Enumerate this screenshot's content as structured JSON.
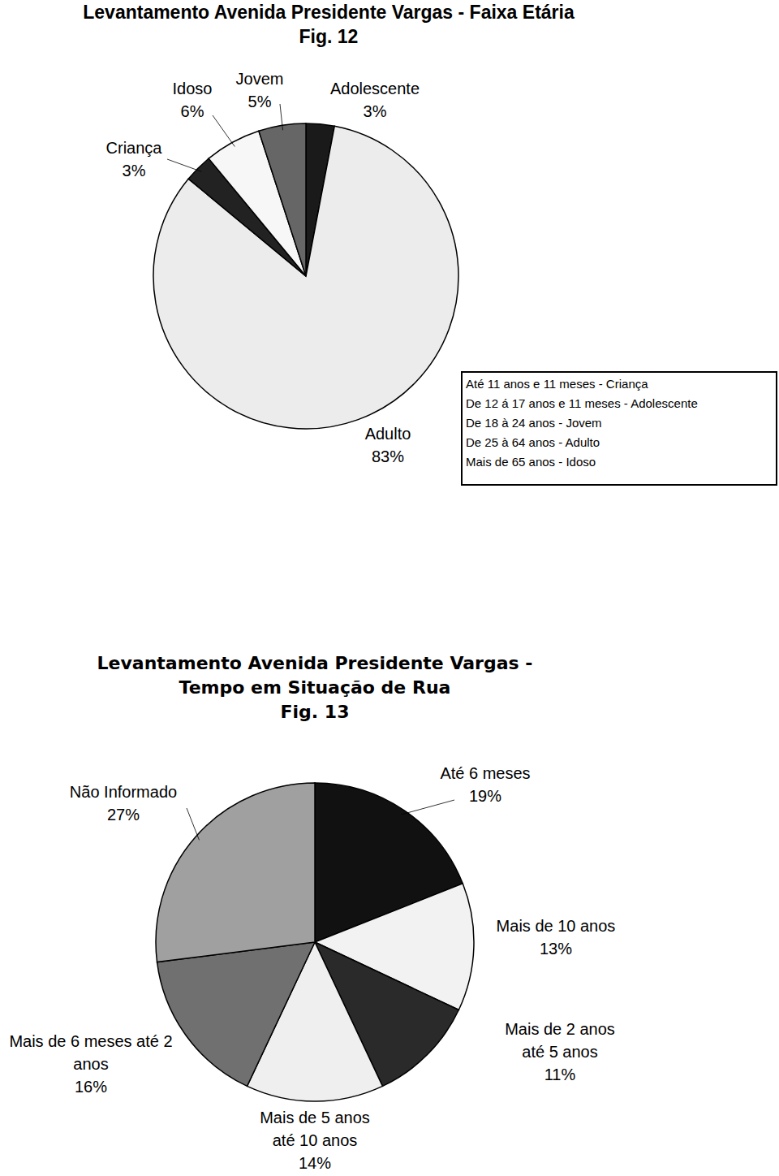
{
  "chart_data": [
    {
      "type": "pie",
      "title": "Levantamento Avenida Presidente Vargas - Faixa Etária",
      "subtitle": "Fig. 12",
      "categories": [
        "Adolescente",
        "Adulto",
        "Criança",
        "Idoso",
        "Jovem"
      ],
      "values": [
        3,
        83,
        3,
        6,
        5
      ],
      "value_labels": [
        "3%",
        "83%",
        "3%",
        "6%",
        "5%"
      ],
      "colors": [
        "#1a1a1a",
        "#ececec",
        "#222222",
        "#f7f7f7",
        "#666666"
      ],
      "data_labels": true,
      "annotations": [
        "Até 11 anos e 11 meses - Criança",
        "De 12 á 17 anos e 11 meses - Adolescente",
        "De 18 à 24 anos - Jovem",
        "De 25 à 64 anos - Adulto",
        "Mais de 65 anos - Idoso"
      ]
    },
    {
      "type": "pie",
      "title": "Levantamento Avenida Presidente Vargas - Tempo em Situação de Rua",
      "subtitle": "Fig. 13",
      "categories": [
        "Até 6 meses",
        "Mais de 10 anos",
        "Mais de 2 anos até 5 anos",
        "Mais de 5 anos até 10 anos",
        "Mais de 6 meses até 2 anos",
        "Não Informado"
      ],
      "values": [
        19,
        13,
        11,
        14,
        16,
        27
      ],
      "value_labels": [
        "19%",
        "13%",
        "11%",
        "14%",
        "16%",
        "27%"
      ],
      "colors": [
        "#111111",
        "#f2f2f2",
        "#2a2a2a",
        "#efefef",
        "#707070",
        "#a0a0a0"
      ],
      "data_labels": true
    }
  ]
}
